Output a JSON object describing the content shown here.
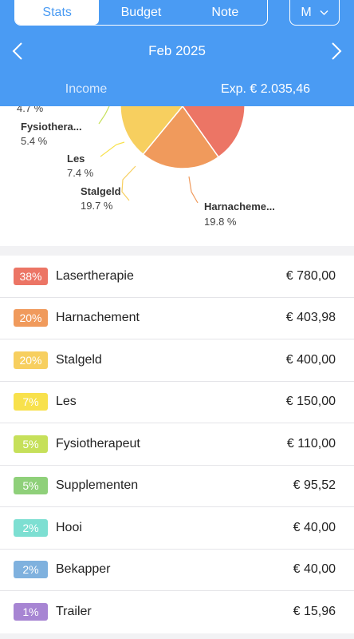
{
  "tabs": [
    {
      "label": "Stats",
      "active": true
    },
    {
      "label": "Budget",
      "active": false
    },
    {
      "label": "Note",
      "active": false
    }
  ],
  "period_selector": {
    "label": "M"
  },
  "month": "Feb 2025",
  "summary": {
    "income_label": "Income",
    "expense_label": "Exp. € 2.035,46"
  },
  "chart_data": {
    "type": "pie",
    "slices": [
      {
        "label": "Lasertherapie",
        "percent": 38.3,
        "color": "#ec7565"
      },
      {
        "label": "Harnachement",
        "percent": 19.8,
        "color": "#f09a5c"
      },
      {
        "label": "Stalgeld",
        "percent": 19.7,
        "color": "#f7cf5f"
      },
      {
        "label": "Les",
        "percent": 7.4,
        "color": "#f8e14c"
      },
      {
        "label": "Fysiotherapeut",
        "percent": 5.4,
        "color": "#c6e05a"
      },
      {
        "label": "Supplementen",
        "percent": 4.7,
        "color": "#8fd07a"
      }
    ],
    "visible_labels": [
      {
        "label": "Harnacheme...",
        "percent_text": "19.8 %"
      },
      {
        "label": "Stalgeld",
        "percent_text": "19.7 %"
      },
      {
        "label": "Les",
        "percent_text": "7.4 %"
      },
      {
        "label": "Fysiothera...",
        "percent_text": "5.4 %"
      },
      {
        "label": "",
        "percent_text": "4.7 %"
      }
    ]
  },
  "categories": [
    {
      "percent": "38%",
      "name": "Lasertherapie",
      "amount": "€ 780,00",
      "color": "#ec7565"
    },
    {
      "percent": "20%",
      "name": "Harnachement",
      "amount": "€ 403,98",
      "color": "#f09a5c"
    },
    {
      "percent": "20%",
      "name": "Stalgeld",
      "amount": "€ 400,00",
      "color": "#f7cf5f"
    },
    {
      "percent": "7%",
      "name": "Les",
      "amount": "€ 150,00",
      "color": "#f8e14c"
    },
    {
      "percent": "5%",
      "name": "Fysiotherapeut",
      "amount": "€ 110,00",
      "color": "#c6e05a"
    },
    {
      "percent": "5%",
      "name": "Supplementen",
      "amount": "€ 95,52",
      "color": "#8fd07a"
    },
    {
      "percent": "2%",
      "name": "Hooi",
      "amount": "€ 40,00",
      "color": "#7ddfd2"
    },
    {
      "percent": "2%",
      "name": "Bekapper",
      "amount": "€ 40,00",
      "color": "#7fb1de"
    },
    {
      "percent": "1%",
      "name": "Trailer",
      "amount": "€ 15,96",
      "color": "#a785d3"
    }
  ]
}
